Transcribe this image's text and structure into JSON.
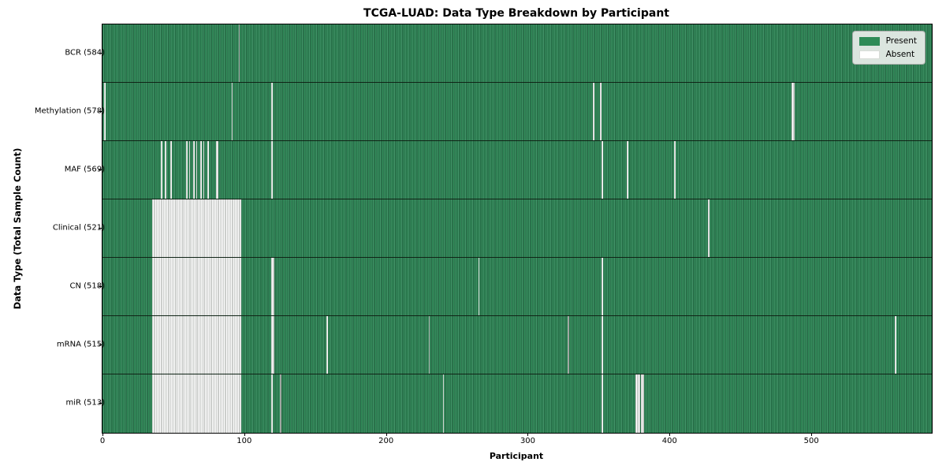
{
  "chart_data": {
    "type": "heatmap",
    "title": "TCGA-LUAD: Data Type Breakdown by Participant",
    "xlabel": "Participant",
    "ylabel": "Data Type (Total Sample Count)",
    "x_ticks": [
      0,
      100,
      200,
      300,
      400,
      500
    ],
    "n_participants": 585,
    "grid": false,
    "legend_position": "upper right",
    "legend": [
      {
        "label": "Present",
        "color": "#2e8b57"
      },
      {
        "label": "Absent",
        "color": "#ffffff"
      }
    ],
    "cell_colors": {
      "present_fill": "#2e8b57",
      "present_edge_dark": "#1b5335",
      "present_edge_light": "#45966b",
      "absent_fill": "#ffffff",
      "absent_edge": "#9aa09b",
      "row_separator": "#0a140c"
    },
    "rows": [
      {
        "label": "BCR (584)",
        "data_type": "BCR",
        "present_count": 584,
        "absent_runs": [
          [
            96,
            1,
            "gray"
          ]
        ]
      },
      {
        "label": "Methylation (578)",
        "data_type": "Methylation",
        "present_count": 578,
        "absent_runs": [
          [
            1,
            1
          ],
          [
            91,
            1
          ],
          [
            119,
            1
          ],
          [
            346,
            1
          ],
          [
            351,
            1
          ],
          [
            486,
            2
          ]
        ]
      },
      {
        "label": "MAF (569)",
        "data_type": "MAF",
        "present_count": 569,
        "absent_runs": [
          [
            41,
            1
          ],
          [
            44,
            1
          ],
          [
            48,
            1
          ],
          [
            59,
            1
          ],
          [
            61,
            1
          ],
          [
            64,
            1
          ],
          [
            66,
            1
          ],
          [
            69,
            1
          ],
          [
            71,
            1
          ],
          [
            74,
            1
          ],
          [
            80,
            2
          ],
          [
            119,
            1
          ],
          [
            352,
            1
          ],
          [
            370,
            1
          ],
          [
            403,
            1
          ]
        ]
      },
      {
        "label": "Clinical (521)",
        "data_type": "Clinical",
        "present_count": 521,
        "absent_runs": [
          [
            35,
            63
          ],
          [
            427,
            1
          ]
        ]
      },
      {
        "label": "CN (518)",
        "data_type": "CN",
        "present_count": 518,
        "absent_runs": [
          [
            35,
            63
          ],
          [
            119,
            2
          ],
          [
            265,
            1
          ],
          [
            352,
            1
          ]
        ]
      },
      {
        "label": "mRNA (515)",
        "data_type": "mRNA",
        "present_count": 515,
        "absent_runs": [
          [
            35,
            63
          ],
          [
            119,
            2
          ],
          [
            158,
            1
          ],
          [
            230,
            1,
            "gray"
          ],
          [
            328,
            1,
            "gray"
          ],
          [
            352,
            1
          ],
          [
            559,
            1
          ]
        ]
      },
      {
        "label": "miR (513)",
        "data_type": "miR",
        "present_count": 513,
        "absent_runs": [
          [
            35,
            63
          ],
          [
            119,
            1
          ],
          [
            125,
            1,
            "gray"
          ],
          [
            240,
            1
          ],
          [
            352,
            1
          ],
          [
            376,
            3
          ],
          [
            380,
            2
          ]
        ]
      }
    ]
  }
}
